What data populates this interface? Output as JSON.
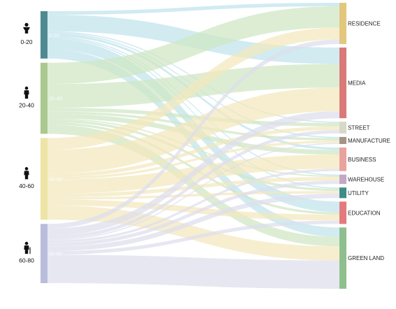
{
  "diagram": {
    "type": "sankey",
    "sources": [
      {
        "id": "s0",
        "label": "0-20",
        "bar_label": "0-20",
        "color": "#4f8a92",
        "flow_color": "#bfe3ec",
        "icon": "child-icon"
      },
      {
        "id": "s1",
        "label": "20-40",
        "bar_label": "20-40",
        "color": "#a9c98f",
        "flow_color": "#cfe6c4",
        "icon": "adult-icon"
      },
      {
        "id": "s2",
        "label": "40-60",
        "bar_label": "40-60",
        "color": "#ede4a6",
        "flow_color": "#f3e7bd",
        "icon": "middle-age-icon"
      },
      {
        "id": "s3",
        "label": "60-80",
        "bar_label": "60-80",
        "color": "#b9bcdc",
        "flow_color": "#dedeed",
        "icon": "elderly-icon"
      }
    ],
    "targets": [
      {
        "id": "t0",
        "label": "RESIDENCE",
        "color": "#e2c77d"
      },
      {
        "id": "t1",
        "label": "MEDIA",
        "color": "#d97a78"
      },
      {
        "id": "t2",
        "label": "STREET",
        "color": "#d7d8c8"
      },
      {
        "id": "t3",
        "label": "MANUFACTURE",
        "color": "#a49488"
      },
      {
        "id": "t4",
        "label": "BUSINESS",
        "color": "#e9a39f"
      },
      {
        "id": "t5",
        "label": "WAREHOUSE",
        "color": "#c4a7c5"
      },
      {
        "id": "t6",
        "label": "UTILITY",
        "color": "#3f8d89"
      },
      {
        "id": "t7",
        "label": "EDUCATION",
        "color": "#e57a7e"
      },
      {
        "id": "t8",
        "label": "GREEN LAND",
        "color": "#8fbf8e"
      }
    ],
    "flows": [
      {
        "source": "s0",
        "target": "t0",
        "value": 3
      },
      {
        "source": "s0",
        "target": "t1",
        "value": 14
      },
      {
        "source": "s0",
        "target": "t2",
        "value": 1
      },
      {
        "source": "s0",
        "target": "t3",
        "value": 1
      },
      {
        "source": "s0",
        "target": "t4",
        "value": 2
      },
      {
        "source": "s0",
        "target": "t5",
        "value": 1
      },
      {
        "source": "s0",
        "target": "t6",
        "value": 1
      },
      {
        "source": "s0",
        "target": "t7",
        "value": 9
      },
      {
        "source": "s0",
        "target": "t8",
        "value": 8
      },
      {
        "source": "s1",
        "target": "t0",
        "value": 18
      },
      {
        "source": "s1",
        "target": "t1",
        "value": 20
      },
      {
        "source": "s1",
        "target": "t2",
        "value": 3
      },
      {
        "source": "s1",
        "target": "t3",
        "value": 2
      },
      {
        "source": "s1",
        "target": "t4",
        "value": 4
      },
      {
        "source": "s1",
        "target": "t5",
        "value": 1
      },
      {
        "source": "s1",
        "target": "t6",
        "value": 2
      },
      {
        "source": "s1",
        "target": "t7",
        "value": 2
      },
      {
        "source": "s1",
        "target": "t8",
        "value": 8
      },
      {
        "source": "s2",
        "target": "t0",
        "value": 10
      },
      {
        "source": "s2",
        "target": "t1",
        "value": 20
      },
      {
        "source": "s2",
        "target": "t2",
        "value": 3
      },
      {
        "source": "s2",
        "target": "t3",
        "value": 2
      },
      {
        "source": "s2",
        "target": "t4",
        "value": 12
      },
      {
        "source": "s2",
        "target": "t5",
        "value": 3
      },
      {
        "source": "s2",
        "target": "t6",
        "value": 2
      },
      {
        "source": "s2",
        "target": "t7",
        "value": 5
      },
      {
        "source": "s2",
        "target": "t8",
        "value": 12
      },
      {
        "source": "s3",
        "target": "t0",
        "value": 4
      },
      {
        "source": "s3",
        "target": "t1",
        "value": 6
      },
      {
        "source": "s3",
        "target": "t2",
        "value": 3
      },
      {
        "source": "s3",
        "target": "t3",
        "value": 1
      },
      {
        "source": "s3",
        "target": "t4",
        "value": 2
      },
      {
        "source": "s3",
        "target": "t5",
        "value": 3
      },
      {
        "source": "s3",
        "target": "t6",
        "value": 4
      },
      {
        "source": "s3",
        "target": "t7",
        "value": 3
      },
      {
        "source": "s3",
        "target": "t8",
        "value": 24
      }
    ]
  }
}
